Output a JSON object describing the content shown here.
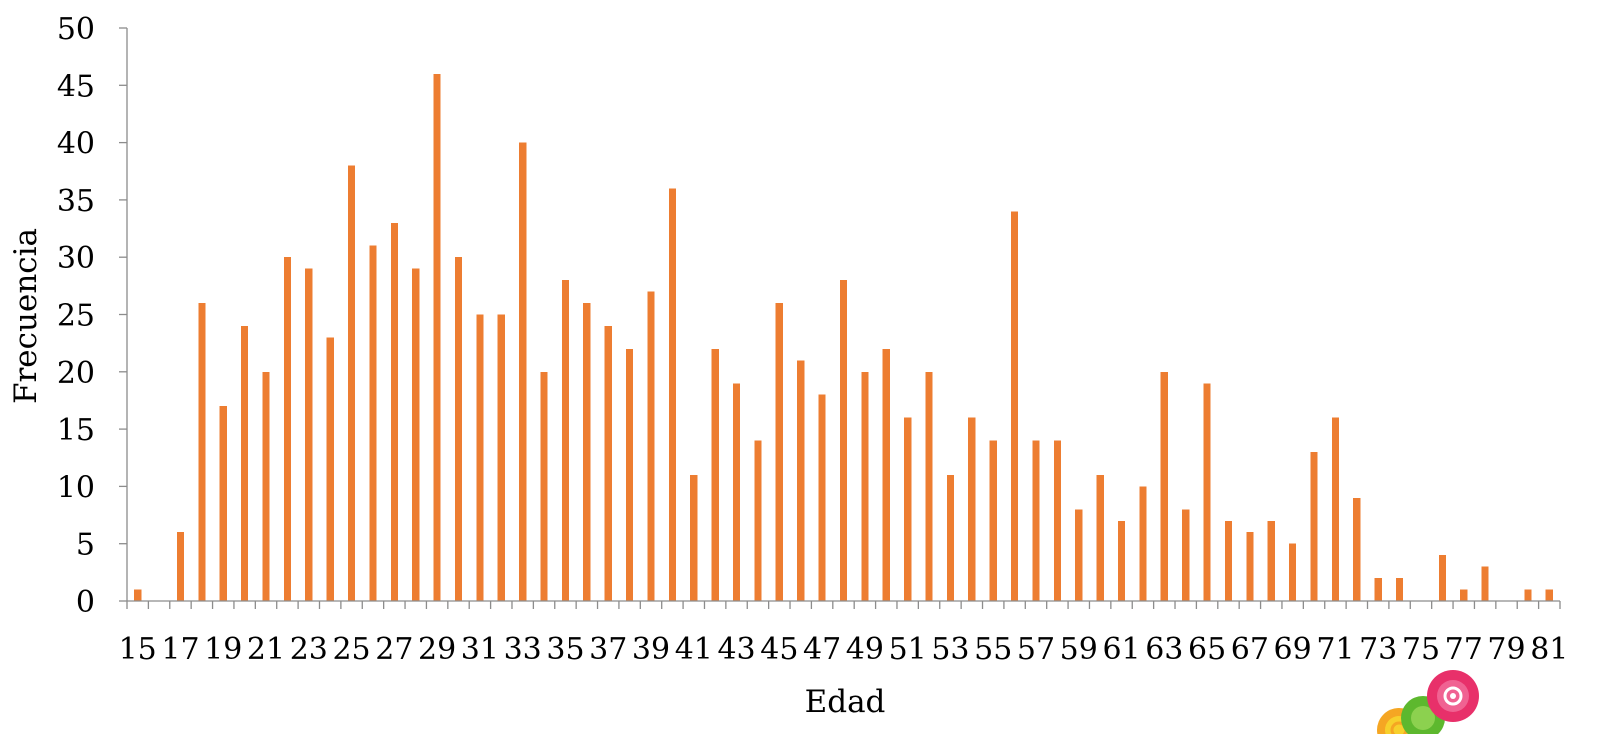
{
  "chart_data": {
    "type": "bar",
    "title": "",
    "xlabel": "Edad",
    "ylabel": "Frecuencia",
    "ylim": [
      0,
      50
    ],
    "yticks": [
      0,
      5,
      10,
      15,
      20,
      25,
      30,
      35,
      40,
      45,
      50
    ],
    "categories": [
      15,
      16,
      17,
      18,
      19,
      20,
      21,
      22,
      23,
      24,
      25,
      26,
      27,
      28,
      29,
      30,
      31,
      32,
      33,
      34,
      35,
      36,
      37,
      38,
      39,
      40,
      41,
      42,
      43,
      44,
      45,
      46,
      47,
      48,
      49,
      50,
      51,
      52,
      53,
      54,
      55,
      56,
      57,
      58,
      59,
      60,
      61,
      62,
      63,
      64,
      65,
      66,
      67,
      68,
      69,
      70,
      71,
      72,
      73,
      74,
      75,
      76,
      77,
      78,
      79,
      80,
      81
    ],
    "tick_labels": [
      15,
      17,
      19,
      21,
      23,
      25,
      27,
      29,
      31,
      33,
      35,
      37,
      39,
      41,
      43,
      45,
      47,
      49,
      51,
      53,
      55,
      57,
      59,
      61,
      63,
      65,
      67,
      69,
      71,
      73,
      75,
      77,
      79,
      81
    ],
    "values": [
      1,
      0,
      6,
      26,
      17,
      24,
      20,
      30,
      29,
      23,
      38,
      31,
      33,
      29,
      46,
      30,
      25,
      25,
      40,
      20,
      28,
      26,
      24,
      22,
      27,
      36,
      11,
      22,
      19,
      14,
      26,
      21,
      18,
      28,
      20,
      22,
      16,
      20,
      11,
      16,
      14,
      34,
      14,
      14,
      8,
      11,
      7,
      10,
      20,
      8,
      19,
      7,
      6,
      7,
      5,
      13,
      16,
      9,
      2,
      2,
      0,
      4,
      1,
      3,
      0,
      1,
      1
    ],
    "bar_color": "#ED7D31",
    "axis_color": "#8C8C8C",
    "grid": false,
    "legend": "none"
  },
  "decoration": {
    "logo_icon": "swirl-logo-icon",
    "colors": [
      "#E8306A",
      "#5DB82E",
      "#F5A623",
      "#F7D02C"
    ]
  }
}
